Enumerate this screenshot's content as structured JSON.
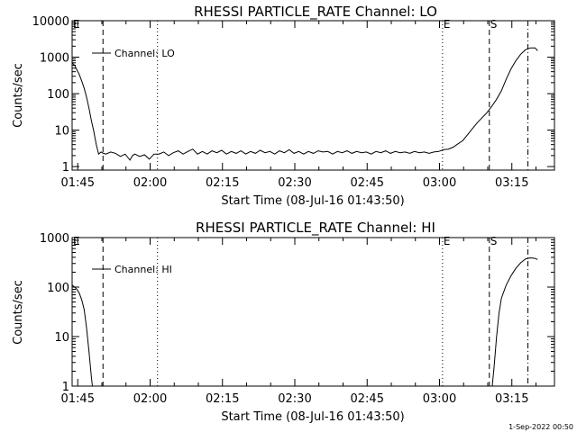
{
  "footer": {
    "date": "1-Sep-2022 00:50"
  },
  "chart_data": [
    {
      "type": "line",
      "title": "RHESSI PARTICLE_RATE Channel: LO",
      "xlabel": "Start Time (08-Jul-16 01:43:50)",
      "ylabel": "Counts/sec",
      "yscale": "log",
      "ylim": [
        0.8,
        10000
      ],
      "xlim_minutes": [
        0,
        100
      ],
      "xticks": [
        "01:45",
        "02:00",
        "02:15",
        "02:30",
        "02:45",
        "03:00",
        "03:15"
      ],
      "yticks": [
        "1",
        "10",
        "100",
        "1000",
        "10000"
      ],
      "legend": {
        "label": "Channel: LO",
        "position": "top-left"
      },
      "markers": [
        {
          "label": "E",
          "style": "none",
          "minute": 0
        },
        {
          "label": "",
          "style": "dashed",
          "minute": 6.4
        },
        {
          "label": "",
          "style": "dotted",
          "minute": 17.7
        },
        {
          "label": "E",
          "style": "dotted",
          "minute": 76.8
        },
        {
          "label": "S",
          "style": "dashed",
          "minute": 86.5
        },
        {
          "label": "",
          "style": "dashdot",
          "minute": 94.5
        }
      ],
      "series": [
        {
          "name": "Channel: LO",
          "points": [
            [
              0,
              700
            ],
            [
              0.5,
              600
            ],
            [
              1,
              450
            ],
            [
              1.5,
              330
            ],
            [
              2,
              220
            ],
            [
              2.5,
              140
            ],
            [
              3,
              80
            ],
            [
              3.5,
              40
            ],
            [
              4,
              18
            ],
            [
              4.5,
              9
            ],
            [
              5,
              4
            ],
            [
              5.5,
              2.2
            ],
            [
              6,
              2.5
            ],
            [
              6.5,
              2.3
            ],
            [
              7,
              2.2
            ],
            [
              8,
              2.5
            ],
            [
              9,
              2.3
            ],
            [
              10,
              1.9
            ],
            [
              11,
              2.2
            ],
            [
              12,
              1.5
            ],
            [
              12.5,
              2.0
            ],
            [
              13,
              2.2
            ],
            [
              14,
              1.9
            ],
            [
              15,
              2.1
            ],
            [
              16,
              1.6
            ],
            [
              17,
              2.2
            ],
            [
              18,
              2.2
            ],
            [
              19,
              2.5
            ],
            [
              20,
              2.0
            ],
            [
              21,
              2.4
            ],
            [
              22,
              2.7
            ],
            [
              23,
              2.2
            ],
            [
              24,
              2.6
            ],
            [
              25,
              3.0
            ],
            [
              26,
              2.2
            ],
            [
              27,
              2.6
            ],
            [
              28,
              2.2
            ],
            [
              29,
              2.7
            ],
            [
              30,
              2.4
            ],
            [
              31,
              2.8
            ],
            [
              32,
              2.2
            ],
            [
              33,
              2.6
            ],
            [
              34,
              2.3
            ],
            [
              35,
              2.7
            ],
            [
              36,
              2.2
            ],
            [
              37,
              2.6
            ],
            [
              38,
              2.3
            ],
            [
              39,
              2.8
            ],
            [
              40,
              2.4
            ],
            [
              41,
              2.6
            ],
            [
              42,
              2.2
            ],
            [
              43,
              2.7
            ],
            [
              44,
              2.4
            ],
            [
              45,
              2.9
            ],
            [
              46,
              2.3
            ],
            [
              47,
              2.6
            ],
            [
              48,
              2.2
            ],
            [
              49,
              2.6
            ],
            [
              50,
              2.3
            ],
            [
              51,
              2.7
            ],
            [
              52,
              2.5
            ],
            [
              53,
              2.6
            ],
            [
              54,
              2.2
            ],
            [
              55,
              2.6
            ],
            [
              56,
              2.4
            ],
            [
              57,
              2.7
            ],
            [
              58,
              2.3
            ],
            [
              59,
              2.6
            ],
            [
              60,
              2.4
            ],
            [
              61,
              2.5
            ],
            [
              62,
              2.2
            ],
            [
              63,
              2.6
            ],
            [
              64,
              2.4
            ],
            [
              65,
              2.7
            ],
            [
              66,
              2.3
            ],
            [
              67,
              2.6
            ],
            [
              68,
              2.4
            ],
            [
              69,
              2.5
            ],
            [
              70,
              2.3
            ],
            [
              71,
              2.6
            ],
            [
              72,
              2.4
            ],
            [
              73,
              2.5
            ],
            [
              74,
              2.3
            ],
            [
              75,
              2.5
            ],
            [
              76,
              2.6
            ],
            [
              77,
              2.9
            ],
            [
              78,
              3.0
            ],
            [
              79,
              3.4
            ],
            [
              80,
              4.2
            ],
            [
              81,
              5.2
            ],
            [
              82,
              7.5
            ],
            [
              83,
              11
            ],
            [
              84,
              16
            ],
            [
              85,
              22
            ],
            [
              86,
              30
            ],
            [
              87,
              45
            ],
            [
              88,
              70
            ],
            [
              89,
              120
            ],
            [
              90,
              250
            ],
            [
              91,
              480
            ],
            [
              92,
              800
            ],
            [
              93,
              1200
            ],
            [
              94,
              1600
            ],
            [
              95,
              1800
            ],
            [
              96,
              1800
            ],
            [
              96.5,
              1500
            ]
          ]
        }
      ]
    },
    {
      "type": "line",
      "title": "RHESSI PARTICLE_RATE Channel: HI",
      "xlabel": "Start Time (08-Jul-16 01:43:50)",
      "ylabel": "Counts/sec",
      "yscale": "log",
      "ylim": [
        1,
        1000
      ],
      "xlim_minutes": [
        0,
        100
      ],
      "xticks": [
        "01:45",
        "02:00",
        "02:15",
        "02:30",
        "02:45",
        "03:00",
        "03:15"
      ],
      "yticks": [
        "1",
        "10",
        "100",
        "1000"
      ],
      "legend": {
        "label": "Channel: HI",
        "position": "top-left"
      },
      "markers": [
        {
          "label": "E",
          "style": "none",
          "minute": 0
        },
        {
          "label": "",
          "style": "dashed",
          "minute": 6.4
        },
        {
          "label": "",
          "style": "dotted",
          "minute": 17.7
        },
        {
          "label": "E",
          "style": "dotted",
          "minute": 76.8
        },
        {
          "label": "S",
          "style": "dashed",
          "minute": 86.5
        },
        {
          "label": "",
          "style": "dashdot",
          "minute": 94.5
        }
      ],
      "series": [
        {
          "name": "Channel: HI",
          "points": [
            [
              0,
              110
            ],
            [
              0.5,
              100
            ],
            [
              1,
              90
            ],
            [
              1.5,
              75
            ],
            [
              2,
              55
            ],
            [
              2.5,
              35
            ],
            [
              3,
              15
            ],
            [
              3.5,
              5
            ],
            [
              4,
              1.5
            ],
            [
              4.2,
              1.0
            ]
          ],
          "points2": [
            [
              87.1,
              1.0
            ],
            [
              87.5,
              2.5
            ],
            [
              88,
              10
            ],
            [
              88.5,
              30
            ],
            [
              89,
              60
            ],
            [
              90,
              110
            ],
            [
              91,
              170
            ],
            [
              92,
              240
            ],
            [
              93,
              310
            ],
            [
              94,
              370
            ],
            [
              95,
              390
            ],
            [
              96,
              380
            ],
            [
              96.5,
              360
            ]
          ]
        }
      ]
    }
  ]
}
